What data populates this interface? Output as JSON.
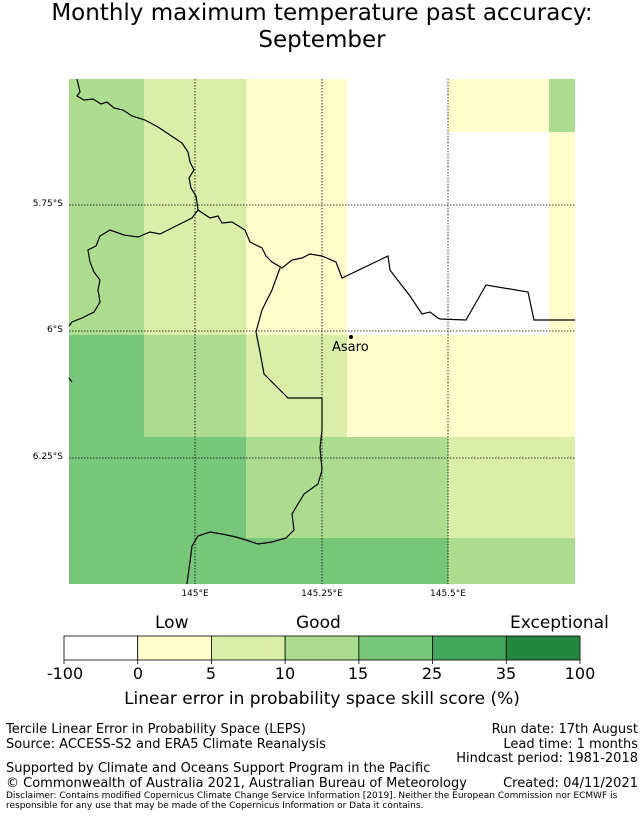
{
  "title_line1": "Monthly maximum temperature past accuracy:",
  "title_line2": "September",
  "map": {
    "lat_labels": [
      "5.75°S",
      "6°S",
      "6.25°S"
    ],
    "lon_labels": [
      "145°E",
      "145.25°E",
      "145.5°E"
    ],
    "place": "Asaro"
  },
  "colorbar": {
    "low": "Low",
    "good": "Good",
    "exceptional": "Exceptional",
    "ticks": [
      "-100",
      "0",
      "5",
      "10",
      "15",
      "25",
      "35",
      "100"
    ],
    "colors": [
      "#ffffff",
      "#fefecd",
      "#daeeaa",
      "#acdc8f",
      "#77c67a",
      "#40a75b",
      "#23873f"
    ],
    "title": "Linear error in probability space skill score (%)"
  },
  "footer": {
    "left1": "Tercile Linear Error in Probability Space (LEPS)",
    "left2": "Source: ACCESS-S2 and ERA5 Climate Reanalysis",
    "right1": "Run date: 17th August",
    "right2": "Lead time: 1 months",
    "right3": "Hindcast period: 1981-2018",
    "supported": "Supported by Climate and Oceans Support Program in the Pacific",
    "copyright": "© Commonwealth of Australia 2021, Australian Bureau of Meteorology",
    "created": "Created: 04/11/2021",
    "disclaimer": "Disclaimer: Contains modified Copernicus Climate Change Service Information [2019]. Neither the European Commission nor ECMWF is responsible for any use that may be made of the Copernicus Information or Data it contains."
  }
}
